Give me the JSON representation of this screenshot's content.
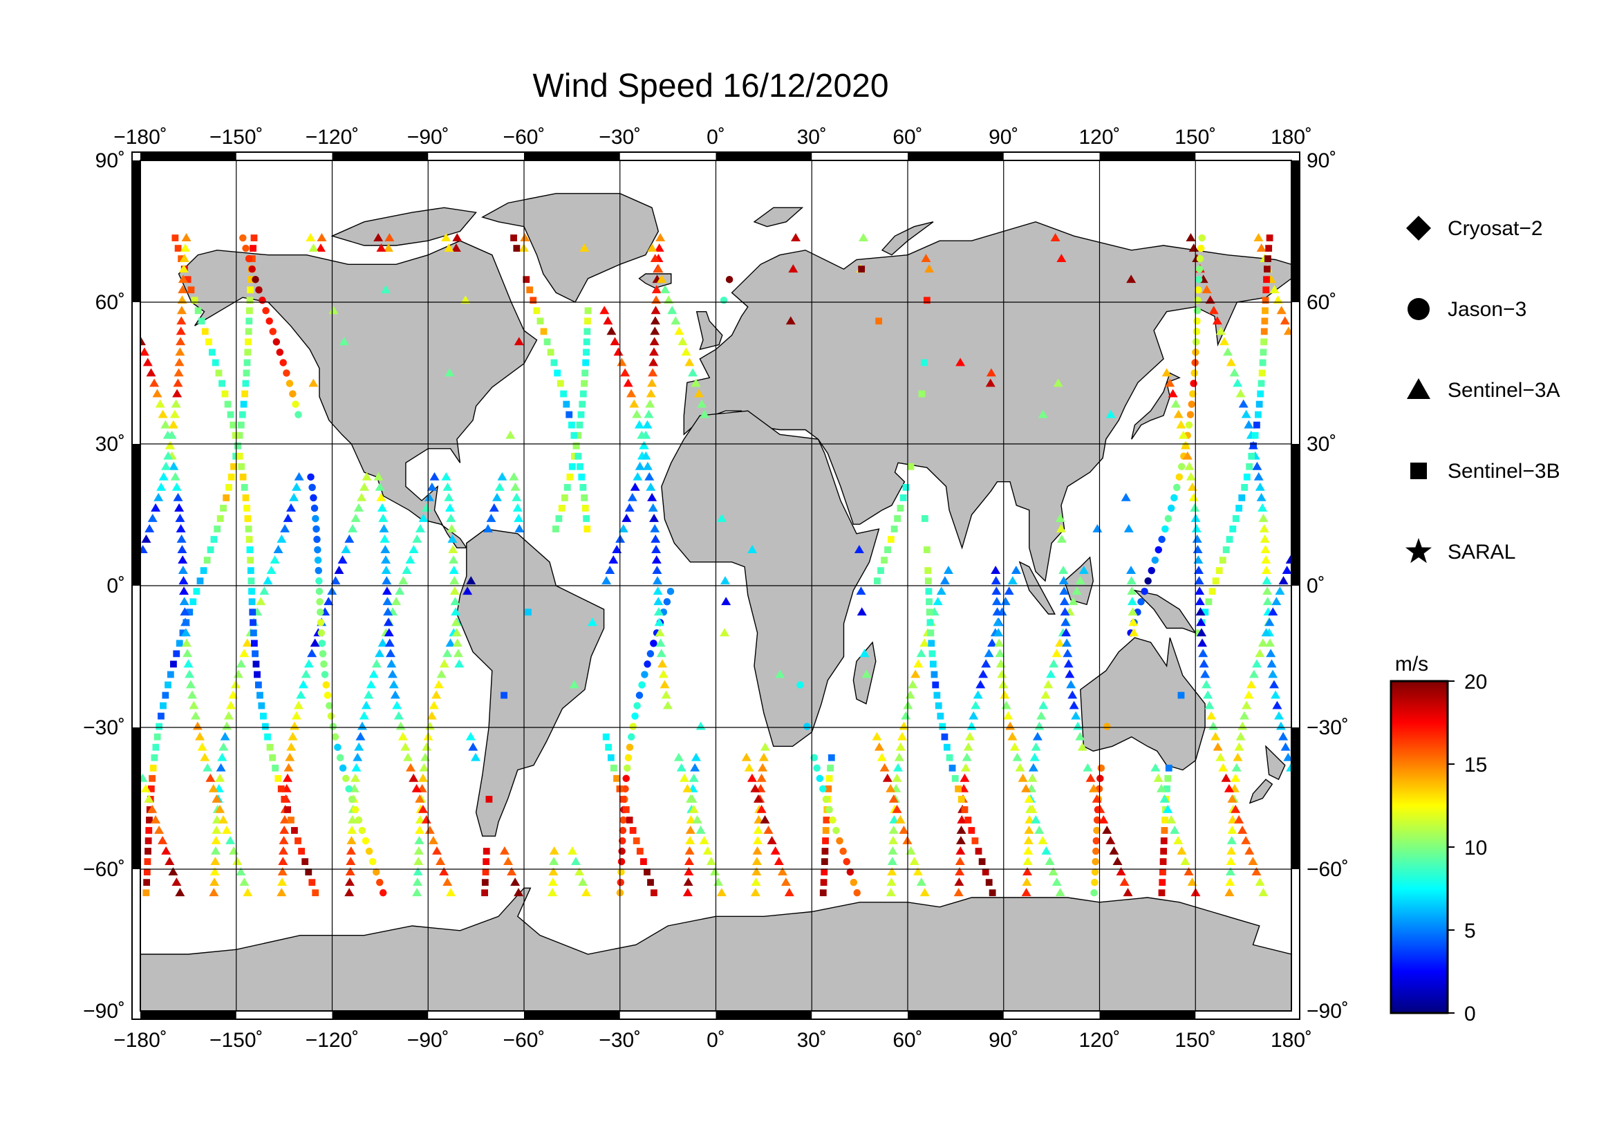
{
  "title": "Wind Speed 16/12/2020",
  "x_ticks": [
    {
      "value": -180,
      "label": "−180˚"
    },
    {
      "value": -150,
      "label": "−150˚"
    },
    {
      "value": -120,
      "label": "−120˚"
    },
    {
      "value": -90,
      "label": "−90˚"
    },
    {
      "value": -60,
      "label": "−60˚"
    },
    {
      "value": -30,
      "label": "−30˚"
    },
    {
      "value": 0,
      "label": "0˚"
    },
    {
      "value": 30,
      "label": "30˚"
    },
    {
      "value": 60,
      "label": "60˚"
    },
    {
      "value": 90,
      "label": "90˚"
    },
    {
      "value": 120,
      "label": "120˚"
    },
    {
      "value": 150,
      "label": "150˚"
    },
    {
      "value": 180,
      "label": "180˚"
    }
  ],
  "y_ticks": [
    {
      "value": 90,
      "label": "90˚"
    },
    {
      "value": 60,
      "label": "60˚"
    },
    {
      "value": 30,
      "label": "30˚"
    },
    {
      "value": 0,
      "label": "0˚"
    },
    {
      "value": -30,
      "label": "−30˚"
    },
    {
      "value": -60,
      "label": "−60˚"
    },
    {
      "value": -90,
      "label": "−90˚"
    }
  ],
  "legend": [
    {
      "label": "Cryosat−2",
      "marker": "diamond"
    },
    {
      "label": "Jason−3",
      "marker": "circle"
    },
    {
      "label": "Sentinel−3A",
      "marker": "triangle"
    },
    {
      "label": "Sentinel−3B",
      "marker": "square"
    },
    {
      "label": "SARAL",
      "marker": "star"
    }
  ],
  "colorbar": {
    "unit": "m/s",
    "min": 0,
    "max": 20,
    "ticks": [
      {
        "value": 20,
        "label": "20"
      },
      {
        "value": 15,
        "label": "15"
      },
      {
        "value": 10,
        "label": "10"
      },
      {
        "value": 5,
        "label": "5"
      },
      {
        "value": 0,
        "label": "0"
      }
    ],
    "colors": [
      "#00007f",
      "#0000ff",
      "#007fff",
      "#00ffff",
      "#7fff7f",
      "#ffff00",
      "#ff7f00",
      "#ff0000",
      "#7f0000"
    ]
  },
  "map": {
    "projection": "equirectangular",
    "lon_range": [
      -180,
      180
    ],
    "lat_range": [
      -90,
      90
    ],
    "graticule_step": 30,
    "land_color": "#bdbdbd",
    "ocean_color": "#ffffff"
  }
}
